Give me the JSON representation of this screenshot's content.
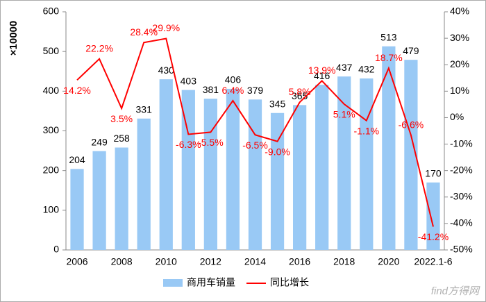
{
  "chart_data": {
    "type": "bar-line",
    "y_label": "×10000",
    "categories": [
      "2006",
      null,
      "2008",
      null,
      "2010",
      null,
      "2012",
      null,
      "2014",
      null,
      "2016",
      null,
      "2018",
      null,
      "2020",
      null,
      "2022.1-6"
    ],
    "series": [
      {
        "name": "商用车销量",
        "type": "bar",
        "color": "#99c9f5",
        "values": [
          204,
          249,
          258,
          331,
          430,
          403,
          381,
          406,
          379,
          345,
          365,
          416,
          437,
          432,
          513,
          479,
          170
        ]
      },
      {
        "name": "同比增长",
        "type": "line",
        "axis": "y2",
        "color": "#ff0000",
        "values": [
          14.2,
          22.2,
          3.5,
          28.4,
          29.9,
          -6.3,
          -5.5,
          6.4,
          -6.5,
          -9.0,
          5.8,
          13.9,
          5.1,
          -1.1,
          18.7,
          -6.6,
          -41.2
        ],
        "value_labels": [
          "14.2%",
          "22.2%",
          "3.5%",
          "28.4%",
          "29.9%",
          "-6.3%",
          "-5.5%",
          "6.4%",
          "-6.5%",
          "-9.0%",
          "5.8%",
          "13.9%",
          "5.1%",
          "-1.1%",
          "18.7%",
          "-6.6%",
          "-41.2%"
        ]
      }
    ],
    "ylim": [
      0,
      600
    ],
    "yticks": [
      0,
      100,
      200,
      300,
      400,
      500,
      600
    ],
    "y2lim": [
      -50,
      40
    ],
    "y2ticks": [
      {
        "value": -50,
        "label": "-50%"
      },
      {
        "value": -40,
        "label": "-40%"
      },
      {
        "value": -30,
        "label": "-30%"
      },
      {
        "value": -20,
        "label": "-20%"
      },
      {
        "value": -10,
        "label": "-10%"
      },
      {
        "value": 0,
        "label": "0%"
      },
      {
        "value": 10,
        "label": "10%"
      },
      {
        "value": 20,
        "label": "20%"
      },
      {
        "value": 30,
        "label": "30%"
      },
      {
        "value": 40,
        "label": "40%"
      }
    ],
    "legend": "bottom",
    "watermark": "find方得网"
  }
}
